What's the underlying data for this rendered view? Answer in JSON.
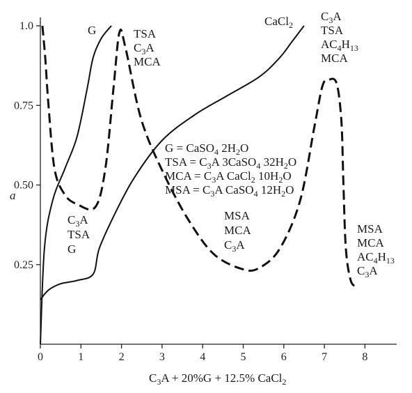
{
  "chart_data": {
    "type": "line",
    "xlabel": "C3A + 20%G + 12.5% CaCl2",
    "ylabel": "a",
    "xlim": [
      0,
      8.8
    ],
    "ylim": [
      0,
      1.0
    ],
    "x_ticks": [
      "0",
      "1",
      "2",
      "3",
      "4",
      "5",
      "6",
      "7",
      "8"
    ],
    "y_ticks": [
      "0.25",
      "0.50",
      "0.75",
      "1.0"
    ],
    "series": [
      {
        "name": "G",
        "style": "solid",
        "points": [
          [
            0,
            0
          ],
          [
            0.1,
            0.3
          ],
          [
            0.3,
            0.45
          ],
          [
            0.6,
            0.55
          ],
          [
            0.9,
            0.65
          ],
          [
            1.15,
            0.8
          ],
          [
            1.3,
            0.9
          ],
          [
            1.5,
            0.96
          ],
          [
            1.75,
            1.0
          ]
        ]
      },
      {
        "name": "CaCl2",
        "style": "solid",
        "points": [
          [
            0,
            0.14
          ],
          [
            0.2,
            0.17
          ],
          [
            0.5,
            0.19
          ],
          [
            0.9,
            0.2
          ],
          [
            1.3,
            0.22
          ],
          [
            1.45,
            0.3
          ],
          [
            1.8,
            0.4
          ],
          [
            2.3,
            0.52
          ],
          [
            3.0,
            0.64
          ],
          [
            3.8,
            0.72
          ],
          [
            4.6,
            0.78
          ],
          [
            5.4,
            0.84
          ],
          [
            5.9,
            0.9
          ],
          [
            6.2,
            0.95
          ],
          [
            6.5,
            1.0
          ]
        ]
      },
      {
        "style": "dashed",
        "points": [
          [
            0.05,
            1.0
          ],
          [
            0.12,
            0.9
          ],
          [
            0.2,
            0.75
          ],
          [
            0.35,
            0.55
          ],
          [
            0.6,
            0.47
          ],
          [
            0.9,
            0.44
          ],
          [
            1.35,
            0.43
          ],
          [
            1.6,
            0.55
          ],
          [
            1.8,
            0.8
          ],
          [
            1.95,
            0.98
          ],
          [
            2.1,
            0.93
          ],
          [
            2.5,
            0.7
          ],
          [
            3.1,
            0.52
          ],
          [
            3.7,
            0.38
          ],
          [
            4.3,
            0.28
          ],
          [
            5.0,
            0.235
          ],
          [
            5.4,
            0.24
          ],
          [
            5.9,
            0.3
          ],
          [
            6.4,
            0.45
          ],
          [
            6.75,
            0.68
          ],
          [
            6.95,
            0.81
          ],
          [
            7.1,
            0.83
          ],
          [
            7.3,
            0.82
          ],
          [
            7.42,
            0.7
          ],
          [
            7.47,
            0.5
          ],
          [
            7.53,
            0.3
          ],
          [
            7.65,
            0.2
          ],
          [
            7.8,
            0.18
          ]
        ]
      }
    ],
    "annotations": {
      "g": "G",
      "cacl2": "CaCl2",
      "peak1": [
        "TSA",
        "C3A",
        "MCA"
      ],
      "peak2": [
        "C3A",
        "TSA",
        "AC4H13",
        "MCA"
      ],
      "region_left": [
        "C3A",
        "TSA",
        "G"
      ],
      "region_mid": [
        "MSA",
        "MCA",
        "C3A"
      ],
      "region_right": [
        "MSA",
        "MCA",
        "AC4H13",
        "C3A"
      ],
      "legend": [
        "G = CaSO4 2H2O",
        "TSA = C3A 3CaSO4 32H2O",
        "MCA = C3A CaCl2 10H2O",
        "MSA = C3A CaSO4 12H2O"
      ]
    }
  }
}
